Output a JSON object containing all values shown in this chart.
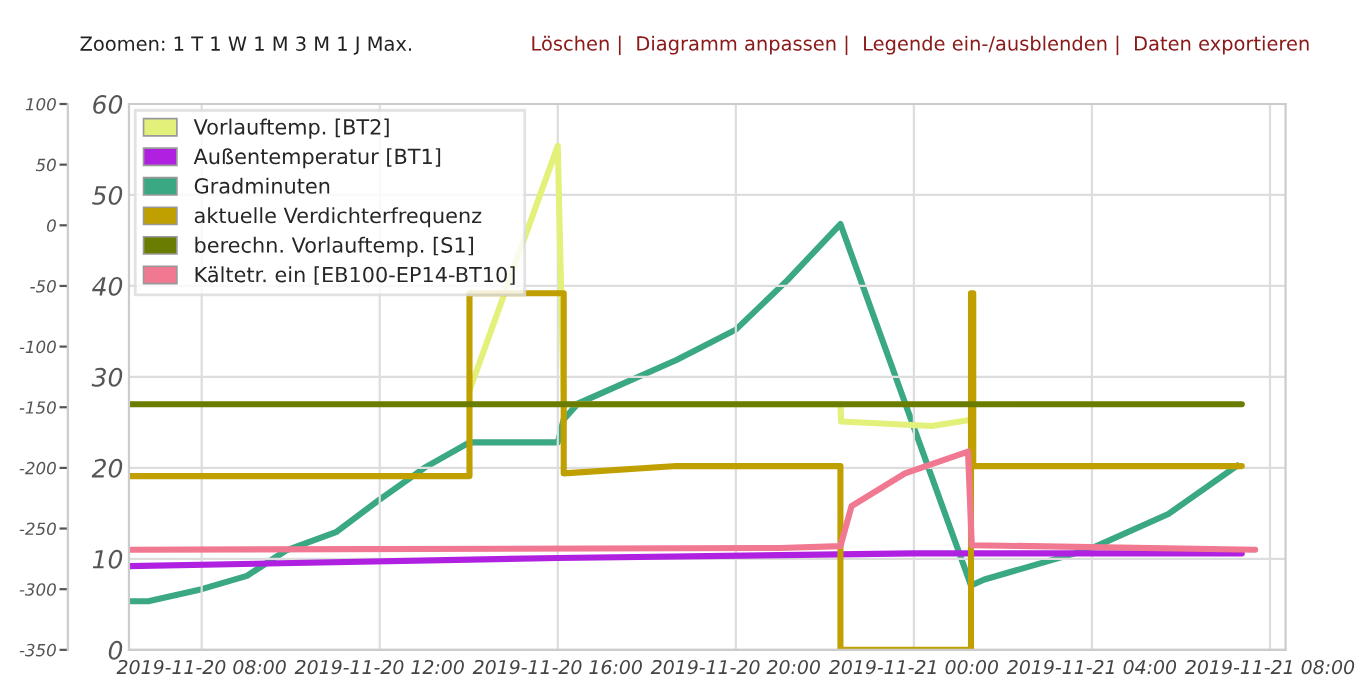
{
  "chart_data": {
    "type": "line",
    "annotations": [
      "Zoomen: 1 T 1 W 1 M 3 M 1 J Max.",
      "Löschen |  Diagramm anpassen |  Legende ein-/ausblenden |  Daten exportieren"
    ],
    "series": [
      {
        "name": "Vorlauftemp. [BT2]",
        "color": "#e3f07a",
        "x": [
          "2019-11-20T14:01",
          "2019-11-20T16:00",
          "2019-11-20T16:08",
          "2019-11-20T22:21",
          "2019-11-20T22:22",
          "2019-11-21T00:24",
          "2019-11-21T01:17"
        ],
        "values": [
          28.5,
          55.4,
          27,
          27,
          25.1,
          24.6,
          25.3
        ]
      },
      {
        "name": "Außentemperatur [BT1]",
        "color": "#b020e0",
        "x": [
          "2019-11-20T06:22",
          "2019-11-20T16:00",
          "2019-11-21T00:00",
          "2019-11-21T07:22"
        ],
        "values": [
          9.2,
          10.1,
          10.6,
          10.6
        ]
      },
      {
        "name": "Gradminuten",
        "color": "#3aa882",
        "axis": "y2",
        "x": [
          "2019-11-20T06:22",
          "2019-11-20T06:48",
          "2019-11-20T08:00",
          "2019-11-20T09:01",
          "2019-11-20T09:54",
          "2019-11-20T11:01",
          "2019-11-20T12:00",
          "2019-11-20T13:00",
          "2019-11-20T14:01",
          "2019-11-20T16:00",
          "2019-11-20T16:08",
          "2019-11-20T16:27",
          "2019-11-20T18:40",
          "2019-11-20T20:00",
          "2019-11-20T21:10",
          "2019-11-20T22:21",
          "2019-11-21T01:17",
          "2019-11-21T01:35",
          "2019-11-21T03:57",
          "2019-11-21T05:43",
          "2019-11-21T07:16"
        ],
        "values": [
          -310,
          -310,
          -300,
          -289,
          -268,
          -253,
          -226,
          -200,
          -179,
          -179,
          -160,
          -147,
          -111,
          -86,
          -45,
          1,
          -297,
          -292,
          -267,
          -238,
          -198
        ]
      },
      {
        "name": "aktuelle Verdichterfrequenz",
        "color": "#c0a000",
        "x": [
          "2019-11-20T06:22",
          "2019-11-20T14:01",
          "2019-11-20T14:01",
          "2019-11-20T16:08",
          "2019-11-20T16:08",
          "2019-11-20T18:40",
          "2019-11-20T22:21",
          "2019-11-20T22:21",
          "2019-11-21T01:17",
          "2019-11-21T01:17",
          "2019-11-21T01:20",
          "2019-11-21T01:20",
          "2019-11-21T07:22"
        ],
        "values": [
          19.1,
          19.1,
          39.2,
          39.2,
          19.4,
          20.2,
          20.2,
          0,
          0,
          39.2,
          39.2,
          20.2,
          20.2
        ]
      },
      {
        "name": "berechn. Vorlauftemp. [S1]",
        "color": "#6b7d00",
        "x": [
          "2019-11-20T06:22",
          "2019-11-21T07:22"
        ],
        "values": [
          27,
          27
        ]
      },
      {
        "name": "Kältetr. ein [EB100-EP14-BT10]",
        "color": "#f07890",
        "x": [
          "2019-11-20T06:22",
          "2019-11-20T21:00",
          "2019-11-20T22:21",
          "2019-11-20T22:36",
          "2019-11-20T23:48",
          "2019-11-21T01:13",
          "2019-11-21T01:18",
          "2019-11-21T07:40"
        ],
        "values": [
          11.0,
          11.2,
          11.4,
          15.8,
          19.4,
          21.8,
          11.5,
          11.0
        ]
      }
    ],
    "xlim": [
      "2019-11-20T06:22",
      "2019-11-21T08:21"
    ],
    "xticks": [
      {
        "value": "2019-11-20T08:00",
        "label": "2019-11-20 08:00"
      },
      {
        "value": "2019-11-20T12:00",
        "label": "2019-11-20 12:00"
      },
      {
        "value": "2019-11-20T16:00",
        "label": "2019-11-20 16:00"
      },
      {
        "value": "2019-11-20T20:00",
        "label": "2019-11-20 20:00"
      },
      {
        "value": "2019-11-21T00:00",
        "label": "2019-11-21 00:00"
      },
      {
        "value": "2019-11-21T04:00",
        "label": "2019-11-21 04:00"
      },
      {
        "value": "2019-11-21T08:00",
        "label": "2019-11-21 08:00"
      }
    ],
    "ylim": [
      0,
      60
    ],
    "yticks": [
      0,
      10,
      20,
      30,
      40,
      50,
      60
    ],
    "y2lim": [
      -350,
      100
    ],
    "y2ticks": [
      -350,
      -300,
      -250,
      -200,
      -150,
      -100,
      -50,
      0,
      50,
      100
    ],
    "grid": true,
    "legend": "top left"
  }
}
